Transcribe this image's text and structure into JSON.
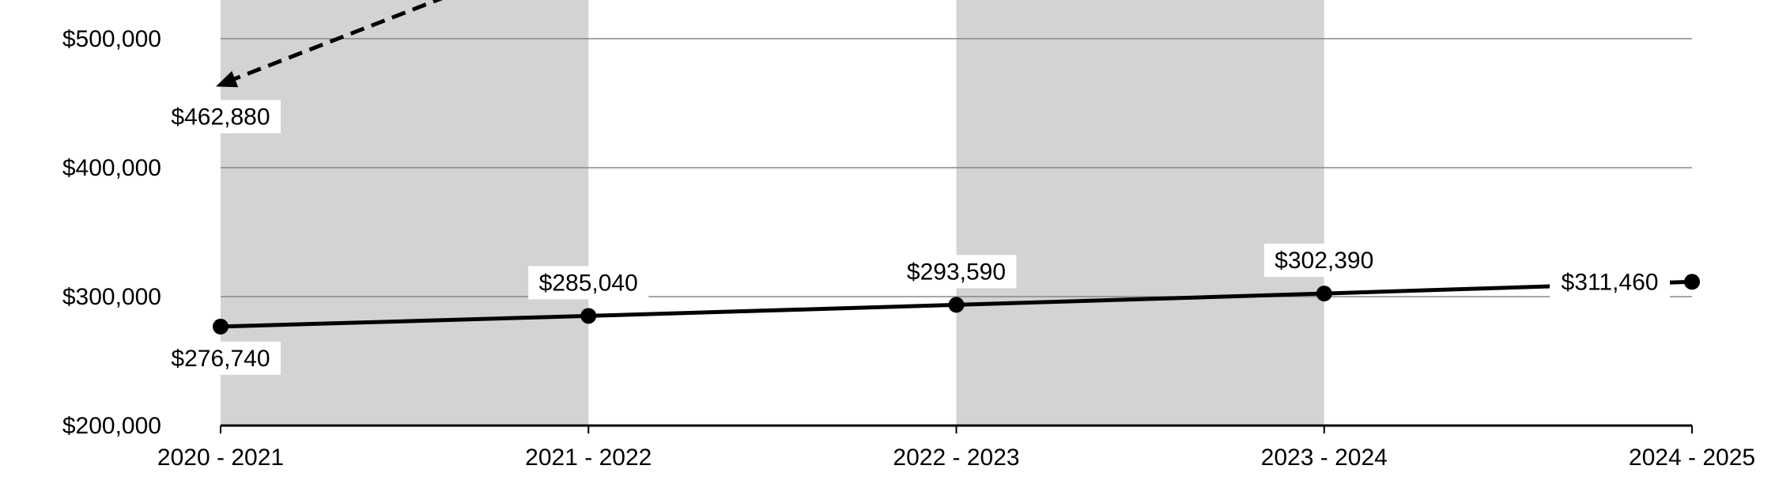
{
  "chart_data": {
    "type": "line",
    "categories": [
      "2020 - 2021",
      "2021 - 2022",
      "2022 - 2023",
      "2023 - 2024",
      "2024 - 2025"
    ],
    "ylim": [
      200000,
      530000
    ],
    "y_ticks": [
      200000,
      300000,
      400000,
      500000
    ],
    "y_tick_labels": [
      "$200,000",
      "$300,000",
      "$400,000",
      "$500,000"
    ],
    "grid": true,
    "shaded_bands": [
      "2020 - 2021 to 2021 - 2022",
      "2022 - 2023 to 2023 - 2024"
    ],
    "series": [
      {
        "style": "solid",
        "marker": "circle",
        "values": [
          276740,
          285040,
          293590,
          302390,
          311460
        ],
        "labels": [
          "$276,740",
          "$285,040",
          "$293,590",
          "$302,390",
          "$311,460"
        ]
      },
      {
        "style": "dashed",
        "marker": "arrow",
        "x": [
          "2020 - 2021",
          "2021 - 2022"
        ],
        "values": [
          462880,
          570000
        ],
        "labels": [
          "$462,880"
        ]
      }
    ],
    "colors": {
      "band": "#d3d3d3",
      "line": "#000000",
      "grid": "#888888"
    }
  }
}
